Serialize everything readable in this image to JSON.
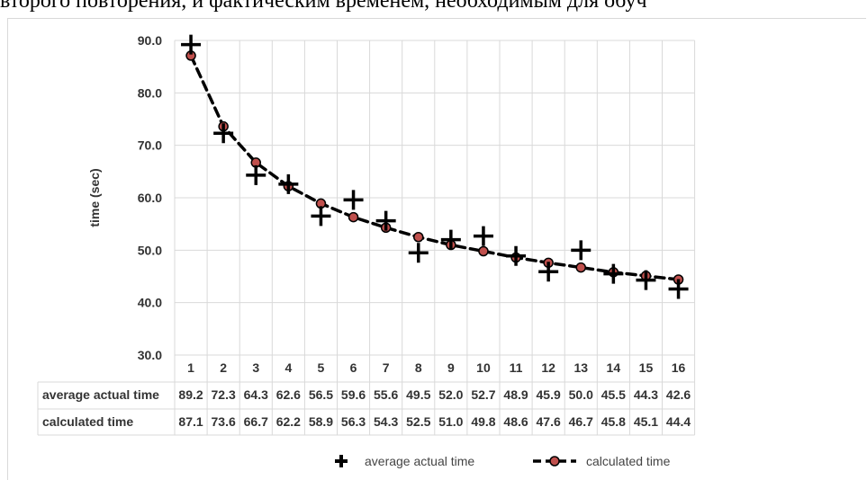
{
  "top_text": "второго повторения, и фактическим временем, необходимым для обуч",
  "chart_data": {
    "type": "line",
    "ylabel": "time (sec)",
    "ylim": [
      30,
      90
    ],
    "yticks": [
      "30.0",
      "40.0",
      "50.0",
      "60.0",
      "70.0",
      "80.0",
      "90.0"
    ],
    "categories": [
      "1",
      "2",
      "3",
      "4",
      "5",
      "6",
      "7",
      "8",
      "9",
      "10",
      "11",
      "12",
      "13",
      "14",
      "15",
      "16"
    ],
    "grid": true,
    "legend_position": "bottom",
    "series": [
      {
        "name": "average actual time",
        "style": "plus-marker",
        "values": [
          89.2,
          72.3,
          64.3,
          62.6,
          56.5,
          59.6,
          55.6,
          49.5,
          52.0,
          52.7,
          48.9,
          45.9,
          50.0,
          45.5,
          44.3,
          42.6
        ]
      },
      {
        "name": "calculated time",
        "style": "dashed-line-with-dots",
        "marker_color": "#c0504d",
        "values": [
          87.1,
          73.6,
          66.7,
          62.2,
          58.9,
          56.3,
          54.3,
          52.5,
          51.0,
          49.8,
          48.6,
          47.6,
          46.7,
          45.8,
          45.1,
          44.4
        ]
      }
    ],
    "table": {
      "rows": [
        {
          "label": "average actual time",
          "cells": [
            "89.2",
            "72.3",
            "64.3",
            "62.6",
            "56.5",
            "59.6",
            "55.6",
            "49.5",
            "52.0",
            "52.7",
            "48.9",
            "45.9",
            "50.0",
            "45.5",
            "44.3",
            "42.6"
          ]
        },
        {
          "label": "calculated time",
          "cells": [
            "87.1",
            "73.6",
            "66.7",
            "62.2",
            "58.9",
            "56.3",
            "54.3",
            "52.5",
            "51.0",
            "49.8",
            "48.6",
            "47.6",
            "46.7",
            "45.8",
            "45.1",
            "44.4"
          ]
        }
      ]
    }
  }
}
